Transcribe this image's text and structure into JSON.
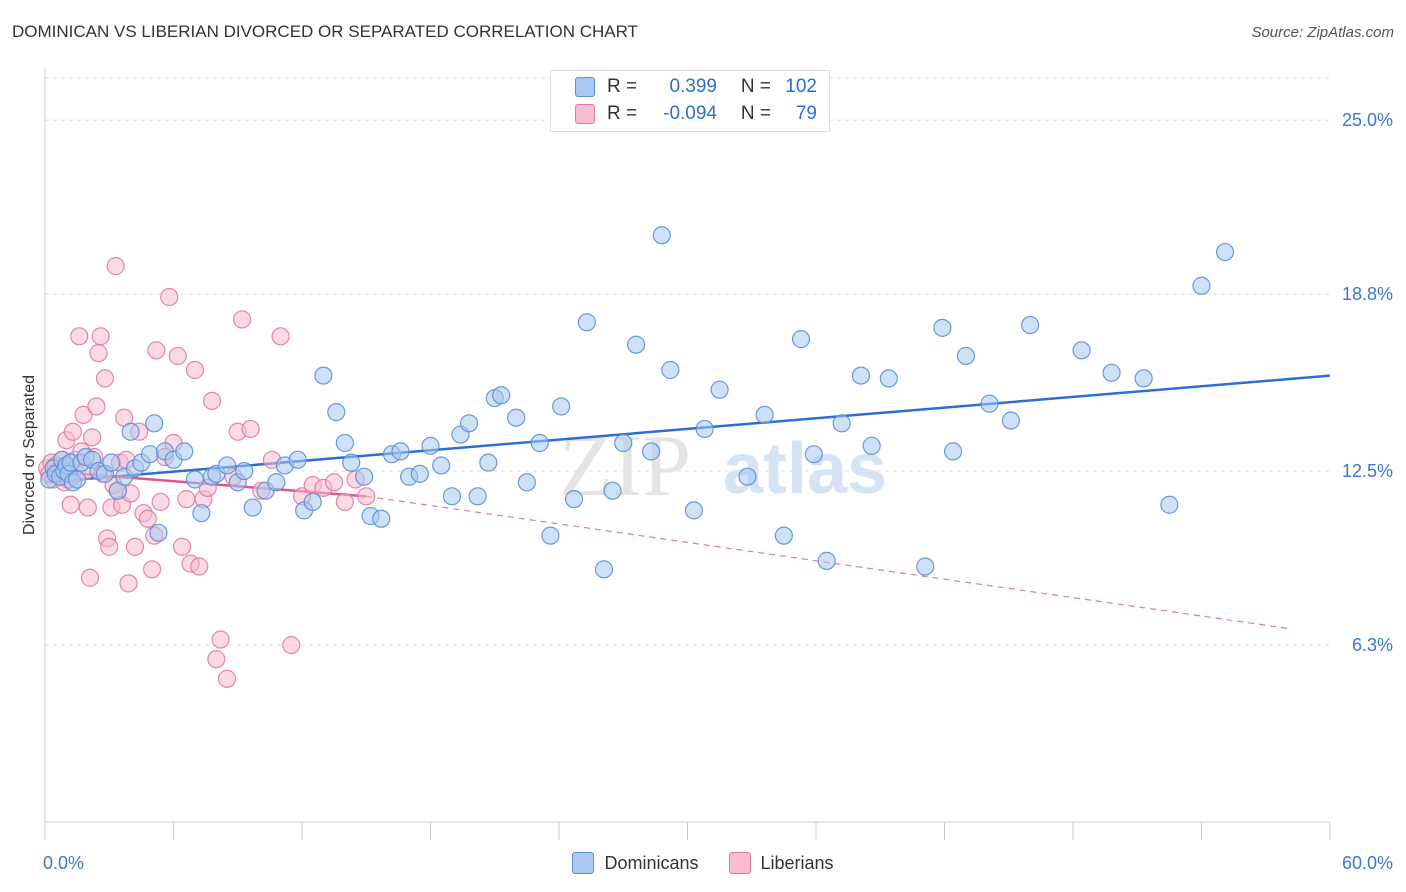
{
  "header": {
    "title": "DOMINICAN VS LIBERIAN DIVORCED OR SEPARATED CORRELATION CHART",
    "source": "Source: ZipAtlas.com"
  },
  "watermark": {
    "part1": "ZIP",
    "part2": "atlas"
  },
  "legend": {
    "rows": [
      {
        "r_label": "R =",
        "r_value": "0.399",
        "n_label": "N =",
        "n_value": "102",
        "color": "#a8c8f0",
        "border": "#5b8fd6"
      },
      {
        "r_label": "R =",
        "r_value": "-0.094",
        "n_label": "N =",
        "n_value": "79",
        "color": "#f7bcd0",
        "border": "#e07aa0"
      }
    ]
  },
  "bottom_legend": [
    {
      "label": "Dominicans",
      "color": "#a8c8f0",
      "border": "#5b8fd6"
    },
    {
      "label": "Liberians",
      "color": "#f7bcd0",
      "border": "#e07aa0"
    }
  ],
  "chart_data": {
    "type": "scatter",
    "title": "DOMINICAN VS LIBERIAN DIVORCED OR SEPARATED CORRELATION CHART",
    "xlabel": "",
    "ylabel": "Divorced or Separated",
    "xlim": [
      0,
      60
    ],
    "ylim": [
      0,
      26.5
    ],
    "x_tick_labels": [
      "0.0%",
      "60.0%"
    ],
    "y_ticks": [
      6.3,
      12.5,
      18.8,
      25.0
    ],
    "y_tick_labels": [
      "6.3%",
      "12.5%",
      "18.8%",
      "25.0%"
    ],
    "grid": true,
    "series": [
      {
        "name": "Dominicans",
        "color": "#5b8fd6",
        "fill": "#a8c8f0",
        "trend": {
          "x": [
            0,
            60
          ],
          "y": [
            12.1,
            15.9
          ],
          "dashed_extension": false
        },
        "points": [
          [
            0.2,
            12.2
          ],
          [
            0.4,
            12.6
          ],
          [
            0.5,
            12.4
          ],
          [
            0.7,
            12.3
          ],
          [
            0.8,
            12.9
          ],
          [
            0.9,
            12.5
          ],
          [
            1.0,
            12.7
          ],
          [
            1.1,
            12.4
          ],
          [
            1.2,
            12.8
          ],
          [
            1.3,
            12.1
          ],
          [
            1.5,
            12.2
          ],
          [
            1.7,
            12.8
          ],
          [
            1.9,
            13.0
          ],
          [
            2.2,
            12.9
          ],
          [
            2.5,
            12.5
          ],
          [
            2.8,
            12.4
          ],
          [
            3.1,
            12.8
          ],
          [
            3.4,
            11.8
          ],
          [
            3.7,
            12.3
          ],
          [
            4.0,
            13.9
          ],
          [
            4.2,
            12.6
          ],
          [
            4.5,
            12.8
          ],
          [
            4.9,
            13.1
          ],
          [
            5.1,
            14.2
          ],
          [
            5.3,
            10.3
          ],
          [
            5.6,
            13.2
          ],
          [
            6.0,
            12.9
          ],
          [
            6.5,
            13.2
          ],
          [
            7.0,
            12.2
          ],
          [
            7.3,
            11.0
          ],
          [
            7.8,
            12.3
          ],
          [
            8.0,
            12.4
          ],
          [
            8.5,
            12.7
          ],
          [
            9.0,
            12.1
          ],
          [
            9.3,
            12.5
          ],
          [
            9.7,
            11.2
          ],
          [
            10.3,
            11.8
          ],
          [
            10.8,
            12.1
          ],
          [
            11.2,
            12.7
          ],
          [
            11.8,
            12.9
          ],
          [
            12.1,
            11.1
          ],
          [
            12.5,
            11.4
          ],
          [
            13.0,
            15.9
          ],
          [
            13.6,
            14.6
          ],
          [
            14.0,
            13.5
          ],
          [
            14.3,
            12.8
          ],
          [
            14.9,
            12.3
          ],
          [
            15.2,
            10.9
          ],
          [
            15.7,
            10.8
          ],
          [
            16.2,
            13.1
          ],
          [
            16.6,
            13.2
          ],
          [
            17.0,
            12.3
          ],
          [
            17.5,
            12.4
          ],
          [
            18.0,
            13.4
          ],
          [
            18.5,
            12.7
          ],
          [
            19.0,
            11.6
          ],
          [
            19.4,
            13.8
          ],
          [
            19.8,
            14.2
          ],
          [
            20.2,
            11.6
          ],
          [
            20.7,
            12.8
          ],
          [
            21.0,
            15.1
          ],
          [
            21.3,
            15.2
          ],
          [
            22.0,
            14.4
          ],
          [
            22.5,
            12.1
          ],
          [
            23.1,
            13.5
          ],
          [
            23.6,
            10.2
          ],
          [
            24.1,
            14.8
          ],
          [
            24.7,
            11.5
          ],
          [
            25.3,
            17.8
          ],
          [
            26.1,
            9.0
          ],
          [
            26.5,
            11.8
          ],
          [
            27.0,
            13.5
          ],
          [
            27.6,
            17.0
          ],
          [
            28.3,
            13.2
          ],
          [
            28.8,
            20.9
          ],
          [
            29.2,
            16.1
          ],
          [
            30.3,
            11.1
          ],
          [
            30.8,
            14.0
          ],
          [
            31.5,
            15.4
          ],
          [
            32.8,
            12.3
          ],
          [
            33.6,
            14.5
          ],
          [
            34.5,
            10.2
          ],
          [
            35.3,
            17.2
          ],
          [
            35.9,
            13.1
          ],
          [
            36.5,
            9.3
          ],
          [
            37.2,
            14.2
          ],
          [
            38.1,
            15.9
          ],
          [
            38.6,
            13.4
          ],
          [
            39.4,
            15.8
          ],
          [
            41.1,
            9.1
          ],
          [
            41.9,
            17.6
          ],
          [
            42.4,
            13.2
          ],
          [
            43.0,
            16.6
          ],
          [
            44.1,
            14.9
          ],
          [
            45.1,
            14.3
          ],
          [
            46.0,
            17.7
          ],
          [
            48.4,
            16.8
          ],
          [
            49.8,
            16.0
          ],
          [
            51.3,
            15.8
          ],
          [
            52.5,
            11.3
          ],
          [
            54.0,
            19.1
          ],
          [
            55.1,
            20.3
          ]
        ]
      },
      {
        "name": "Liberians",
        "color": "#e07aa0",
        "fill": "#f7bcd0",
        "trend": {
          "x": [
            0,
            15
          ],
          "y": [
            12.5,
            11.6
          ],
          "dashed_to": [
            58,
            6.9
          ]
        },
        "points": [
          [
            0.1,
            12.6
          ],
          [
            0.2,
            12.4
          ],
          [
            0.3,
            12.8
          ],
          [
            0.4,
            12.2
          ],
          [
            0.5,
            12.7
          ],
          [
            0.6,
            12.5
          ],
          [
            0.7,
            12.3
          ],
          [
            0.8,
            12.9
          ],
          [
            0.9,
            12.1
          ],
          [
            1.0,
            12.6
          ],
          [
            1.0,
            13.6
          ],
          [
            1.1,
            12.2
          ],
          [
            1.2,
            11.3
          ],
          [
            1.3,
            13.9
          ],
          [
            1.4,
            12.9
          ],
          [
            1.5,
            12.4
          ],
          [
            1.6,
            17.3
          ],
          [
            1.7,
            13.2
          ],
          [
            1.8,
            14.5
          ],
          [
            1.9,
            12.5
          ],
          [
            2.0,
            11.2
          ],
          [
            2.1,
            8.7
          ],
          [
            2.2,
            13.7
          ],
          [
            2.3,
            13.0
          ],
          [
            2.4,
            14.8
          ],
          [
            2.5,
            16.7
          ],
          [
            2.6,
            17.3
          ],
          [
            2.7,
            12.4
          ],
          [
            2.8,
            15.8
          ],
          [
            2.9,
            10.1
          ],
          [
            3.0,
            9.8
          ],
          [
            3.1,
            11.2
          ],
          [
            3.2,
            12.0
          ],
          [
            3.3,
            19.8
          ],
          [
            3.4,
            11.8
          ],
          [
            3.5,
            12.8
          ],
          [
            3.6,
            11.3
          ],
          [
            3.7,
            14.4
          ],
          [
            3.8,
            12.9
          ],
          [
            3.9,
            8.5
          ],
          [
            4.0,
            11.7
          ],
          [
            4.2,
            9.8
          ],
          [
            4.4,
            13.9
          ],
          [
            4.6,
            11.0
          ],
          [
            4.8,
            10.8
          ],
          [
            5.0,
            9.0
          ],
          [
            5.1,
            10.2
          ],
          [
            5.2,
            16.8
          ],
          [
            5.4,
            11.4
          ],
          [
            5.6,
            13.0
          ],
          [
            5.8,
            18.7
          ],
          [
            6.0,
            13.5
          ],
          [
            6.2,
            16.6
          ],
          [
            6.4,
            9.8
          ],
          [
            6.6,
            11.5
          ],
          [
            6.8,
            9.2
          ],
          [
            7.0,
            16.1
          ],
          [
            7.2,
            9.1
          ],
          [
            7.4,
            11.5
          ],
          [
            7.6,
            11.9
          ],
          [
            7.8,
            15.0
          ],
          [
            8.0,
            5.8
          ],
          [
            8.2,
            6.5
          ],
          [
            8.5,
            5.1
          ],
          [
            8.8,
            12.3
          ],
          [
            9.0,
            13.9
          ],
          [
            9.2,
            17.9
          ],
          [
            9.6,
            14.0
          ],
          [
            10.1,
            11.8
          ],
          [
            10.6,
            12.9
          ],
          [
            11.0,
            17.3
          ],
          [
            11.5,
            6.3
          ],
          [
            12.0,
            11.6
          ],
          [
            12.5,
            12.0
          ],
          [
            13.0,
            11.9
          ],
          [
            13.5,
            12.1
          ],
          [
            14.0,
            11.4
          ],
          [
            14.5,
            12.2
          ],
          [
            15.0,
            11.6
          ]
        ]
      }
    ]
  }
}
